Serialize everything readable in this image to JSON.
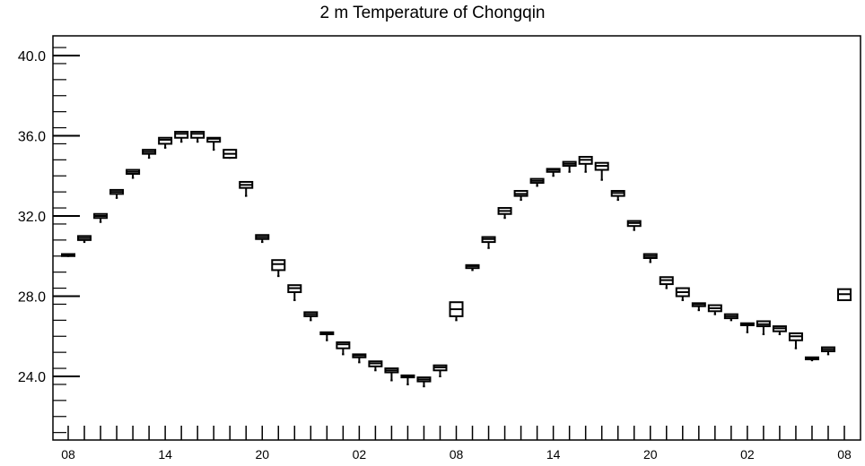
{
  "chart_data": {
    "type": "boxplot",
    "title": "2 m Temperature of Chongqin",
    "xlabel": "",
    "ylabel": "",
    "ylim": [
      21.0,
      41.0
    ],
    "y_major_ticks": [
      24.0,
      28.0,
      32.0,
      36.0,
      40.0
    ],
    "y_tick_labels": [
      "24.0",
      "28.0",
      "32.0",
      "36.0",
      "40.0"
    ],
    "x_range": [
      0,
      48
    ],
    "x_major_ticks": [
      0,
      6,
      12,
      18,
      24,
      30,
      36,
      42,
      48
    ],
    "x_tick_labels": [
      "08",
      "14",
      "20",
      "02",
      "08",
      "14",
      "20",
      "02",
      "08"
    ],
    "grid": false,
    "boxes": [
      {
        "x": 0,
        "min": 30.0,
        "q1": 30.0,
        "median": 30.05,
        "q3": 30.1,
        "max": 30.1
      },
      {
        "x": 1,
        "min": 30.7,
        "q1": 30.8,
        "median": 30.9,
        "q3": 31.0,
        "max": 31.0
      },
      {
        "x": 2,
        "min": 31.7,
        "q1": 31.9,
        "median": 32.0,
        "q3": 32.1,
        "max": 32.1
      },
      {
        "x": 3,
        "min": 32.9,
        "q1": 33.1,
        "median": 33.2,
        "q3": 33.3,
        "max": 33.3
      },
      {
        "x": 4,
        "min": 33.9,
        "q1": 34.1,
        "median": 34.2,
        "q3": 34.3,
        "max": 34.3
      },
      {
        "x": 5,
        "min": 34.9,
        "q1": 35.1,
        "median": 35.2,
        "q3": 35.3,
        "max": 35.3
      },
      {
        "x": 6,
        "min": 35.4,
        "q1": 35.6,
        "median": 35.8,
        "q3": 35.9,
        "max": 35.9
      },
      {
        "x": 7,
        "min": 35.7,
        "q1": 35.9,
        "median": 36.1,
        "q3": 36.2,
        "max": 36.2
      },
      {
        "x": 8,
        "min": 35.7,
        "q1": 35.9,
        "median": 36.1,
        "q3": 36.2,
        "max": 36.2
      },
      {
        "x": 9,
        "min": 35.3,
        "q1": 35.7,
        "median": 35.85,
        "q3": 35.9,
        "max": 35.9
      },
      {
        "x": 10,
        "min": 34.9,
        "q1": 34.9,
        "median": 35.1,
        "q3": 35.3,
        "max": 35.3
      },
      {
        "x": 11,
        "min": 33.0,
        "q1": 33.4,
        "median": 33.55,
        "q3": 33.7,
        "max": 33.7
      },
      {
        "x": 12,
        "min": 30.7,
        "q1": 30.85,
        "median": 30.95,
        "q3": 31.05,
        "max": 31.05
      },
      {
        "x": 13,
        "min": 29.0,
        "q1": 29.3,
        "median": 29.6,
        "q3": 29.8,
        "max": 29.8
      },
      {
        "x": 14,
        "min": 27.8,
        "q1": 28.2,
        "median": 28.4,
        "q3": 28.55,
        "max": 28.55
      },
      {
        "x": 15,
        "min": 26.8,
        "q1": 27.0,
        "median": 27.1,
        "q3": 27.2,
        "max": 27.2
      },
      {
        "x": 16,
        "min": 25.8,
        "q1": 26.1,
        "median": 26.15,
        "q3": 26.2,
        "max": 26.2
      },
      {
        "x": 17,
        "min": 25.1,
        "q1": 25.4,
        "median": 25.6,
        "q3": 25.7,
        "max": 25.7
      },
      {
        "x": 18,
        "min": 24.7,
        "q1": 24.95,
        "median": 25.05,
        "q3": 25.1,
        "max": 25.1
      },
      {
        "x": 19,
        "min": 24.3,
        "q1": 24.5,
        "median": 24.65,
        "q3": 24.75,
        "max": 24.75
      },
      {
        "x": 20,
        "min": 23.8,
        "q1": 24.2,
        "median": 24.3,
        "q3": 24.4,
        "max": 24.4
      },
      {
        "x": 21,
        "min": 23.6,
        "q1": 23.95,
        "median": 24.0,
        "q3": 24.05,
        "max": 24.05
      },
      {
        "x": 22,
        "min": 23.5,
        "q1": 23.75,
        "median": 23.85,
        "q3": 23.95,
        "max": 23.95
      },
      {
        "x": 23,
        "min": 24.0,
        "q1": 24.3,
        "median": 24.45,
        "q3": 24.55,
        "max": 24.55
      },
      {
        "x": 24,
        "min": 26.8,
        "q1": 27.0,
        "median": 27.35,
        "q3": 27.7,
        "max": 27.7
      },
      {
        "x": 25,
        "min": 29.3,
        "q1": 29.4,
        "median": 29.5,
        "q3": 29.55,
        "max": 29.55
      },
      {
        "x": 26,
        "min": 30.4,
        "q1": 30.7,
        "median": 30.85,
        "q3": 30.95,
        "max": 30.95
      },
      {
        "x": 27,
        "min": 31.9,
        "q1": 32.1,
        "median": 32.25,
        "q3": 32.4,
        "max": 32.4
      },
      {
        "x": 28,
        "min": 32.8,
        "q1": 33.0,
        "median": 33.1,
        "q3": 33.25,
        "max": 33.25
      },
      {
        "x": 29,
        "min": 33.5,
        "q1": 33.65,
        "median": 33.75,
        "q3": 33.85,
        "max": 33.85
      },
      {
        "x": 30,
        "min": 34.0,
        "q1": 34.2,
        "median": 34.3,
        "q3": 34.35,
        "max": 34.35
      },
      {
        "x": 31,
        "min": 34.2,
        "q1": 34.5,
        "median": 34.6,
        "q3": 34.7,
        "max": 34.7
      },
      {
        "x": 32,
        "min": 34.2,
        "q1": 34.6,
        "median": 34.8,
        "q3": 34.95,
        "max": 34.95
      },
      {
        "x": 33,
        "min": 33.8,
        "q1": 34.3,
        "median": 34.5,
        "q3": 34.65,
        "max": 34.65
      },
      {
        "x": 34,
        "min": 32.8,
        "q1": 33.0,
        "median": 33.15,
        "q3": 33.25,
        "max": 33.25
      },
      {
        "x": 35,
        "min": 31.3,
        "q1": 31.5,
        "median": 31.65,
        "q3": 31.75,
        "max": 31.75
      },
      {
        "x": 36,
        "min": 29.7,
        "q1": 29.9,
        "median": 30.0,
        "q3": 30.1,
        "max": 30.1
      },
      {
        "x": 37,
        "min": 28.4,
        "q1": 28.6,
        "median": 28.8,
        "q3": 28.95,
        "max": 28.95
      },
      {
        "x": 38,
        "min": 27.8,
        "q1": 28.0,
        "median": 28.2,
        "q3": 28.4,
        "max": 28.4
      },
      {
        "x": 39,
        "min": 27.3,
        "q1": 27.5,
        "median": 27.6,
        "q3": 27.65,
        "max": 27.65
      },
      {
        "x": 40,
        "min": 27.1,
        "q1": 27.25,
        "median": 27.4,
        "q3": 27.55,
        "max": 27.55
      },
      {
        "x": 41,
        "min": 26.8,
        "q1": 26.9,
        "median": 27.0,
        "q3": 27.1,
        "max": 27.1
      },
      {
        "x": 42,
        "min": 26.2,
        "q1": 26.55,
        "median": 26.6,
        "q3": 26.65,
        "max": 26.65
      },
      {
        "x": 43,
        "min": 26.1,
        "q1": 26.5,
        "median": 26.6,
        "q3": 26.75,
        "max": 26.75
      },
      {
        "x": 44,
        "min": 26.1,
        "q1": 26.25,
        "median": 26.4,
        "q3": 26.5,
        "max": 26.5
      },
      {
        "x": 45,
        "min": 25.4,
        "q1": 25.8,
        "median": 26.0,
        "q3": 26.15,
        "max": 26.15
      },
      {
        "x": 46,
        "min": 24.8,
        "q1": 24.85,
        "median": 24.9,
        "q3": 24.95,
        "max": 24.95
      },
      {
        "x": 47,
        "min": 25.1,
        "q1": 25.25,
        "median": 25.35,
        "q3": 25.45,
        "max": 25.45
      },
      {
        "x": 48,
        "min": 27.8,
        "q1": 27.8,
        "median": 28.1,
        "q3": 28.35,
        "max": 28.35
      }
    ]
  }
}
